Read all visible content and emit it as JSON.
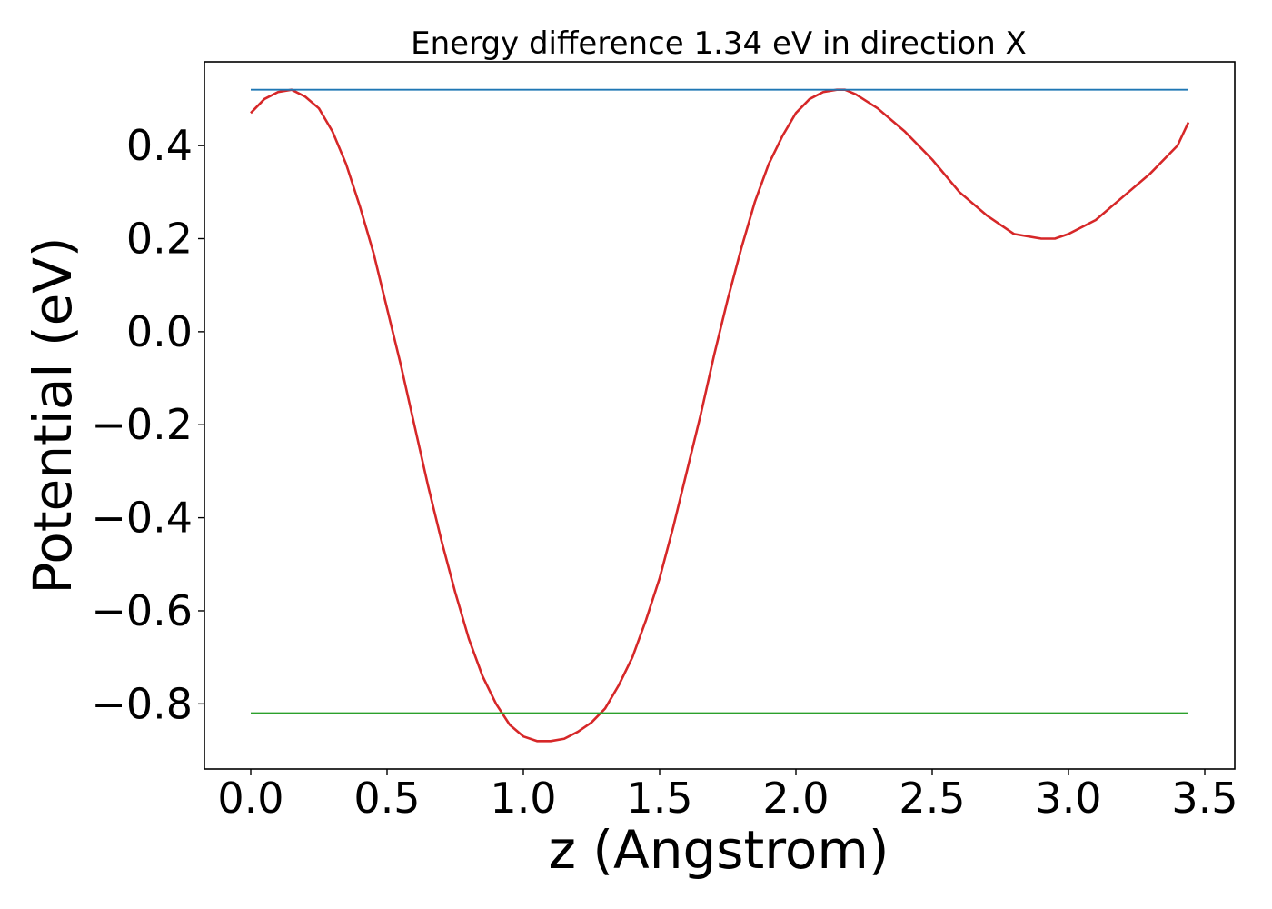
{
  "chart_data": {
    "type": "line",
    "title": "Energy difference 1.34 eV in direction X",
    "xlabel": "z (Angstrom)",
    "ylabel": "Potential (eV)",
    "xlim": [
      -0.17,
      3.61
    ],
    "ylim": [
      -0.94,
      0.58
    ],
    "xticks": [
      0.0,
      0.5,
      1.0,
      1.5,
      2.0,
      2.5,
      3.0,
      3.5
    ],
    "xtick_labels": [
      "0.0",
      "0.5",
      "1.0",
      "1.5",
      "2.0",
      "2.5",
      "3.0",
      "3.5"
    ],
    "yticks": [
      0.4,
      0.2,
      0.0,
      -0.2,
      -0.4,
      -0.6,
      -0.8
    ],
    "ytick_labels": [
      "0.4",
      "0.2",
      "0.0",
      "−0.2",
      "−0.4",
      "−0.6",
      "−0.8"
    ],
    "grid": false,
    "legend": "none",
    "series": [
      {
        "color": "#d62728",
        "x": [
          0.0,
          0.05,
          0.1,
          0.15,
          0.2,
          0.25,
          0.3,
          0.35,
          0.4,
          0.45,
          0.5,
          0.55,
          0.6,
          0.65,
          0.7,
          0.75,
          0.8,
          0.85,
          0.9,
          0.95,
          1.0,
          1.05,
          1.1,
          1.15,
          1.2,
          1.25,
          1.3,
          1.35,
          1.4,
          1.45,
          1.5,
          1.55,
          1.6,
          1.65,
          1.7,
          1.75,
          1.8,
          1.85,
          1.9,
          1.95,
          2.0,
          2.05,
          2.1,
          2.15,
          2.18,
          2.22,
          2.3,
          2.4,
          2.5,
          2.6,
          2.7,
          2.8,
          2.9,
          2.95,
          3.0,
          3.1,
          3.2,
          3.3,
          3.4,
          3.44
        ],
        "y": [
          0.47,
          0.5,
          0.515,
          0.52,
          0.505,
          0.48,
          0.43,
          0.36,
          0.27,
          0.17,
          0.05,
          -0.07,
          -0.2,
          -0.33,
          -0.45,
          -0.56,
          -0.66,
          -0.74,
          -0.8,
          -0.845,
          -0.87,
          -0.88,
          -0.88,
          -0.875,
          -0.86,
          -0.84,
          -0.81,
          -0.76,
          -0.7,
          -0.62,
          -0.53,
          -0.42,
          -0.3,
          -0.18,
          -0.05,
          0.07,
          0.18,
          0.28,
          0.36,
          0.42,
          0.47,
          0.5,
          0.515,
          0.52,
          0.52,
          0.51,
          0.48,
          0.43,
          0.37,
          0.3,
          0.25,
          0.21,
          0.2,
          0.2,
          0.21,
          0.24,
          0.29,
          0.34,
          0.4,
          0.45
        ]
      },
      {
        "color": "#1f77b4",
        "x": [
          0.0,
          3.44
        ],
        "y": [
          0.52,
          0.52
        ]
      },
      {
        "color": "#2ca02c",
        "x": [
          0.0,
          3.44
        ],
        "y": [
          -0.82,
          -0.82
        ]
      }
    ]
  }
}
